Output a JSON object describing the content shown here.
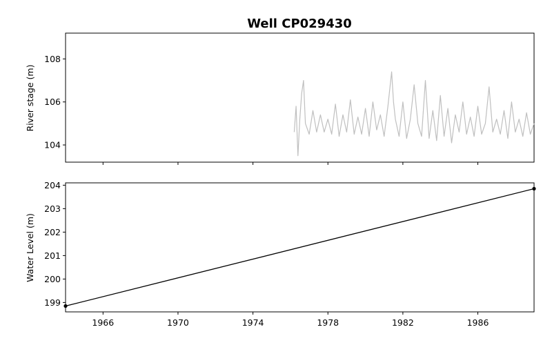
{
  "figure": {
    "title": "Well CP029430"
  },
  "chart_data": [
    {
      "type": "line",
      "name": "top-panel",
      "ylabel": "River stage (m)",
      "xlabel": "",
      "x_unit": "year",
      "xlim": [
        1964.0,
        1989.0
      ],
      "ylim": [
        103.2,
        109.2
      ],
      "yticks": [
        104,
        106,
        108
      ],
      "xticks": [
        1966,
        1970,
        1974,
        1978,
        1982,
        1986
      ],
      "x_tick_labels_shown": false,
      "grid": false,
      "series": [
        {
          "color": "#bfbfbf",
          "x": [
            1976.2,
            1976.3,
            1976.4,
            1976.5,
            1976.6,
            1976.7,
            1976.8,
            1977.0,
            1977.2,
            1977.4,
            1977.6,
            1977.8,
            1978.0,
            1978.2,
            1978.4,
            1978.6,
            1978.8,
            1979.0,
            1979.2,
            1979.4,
            1979.6,
            1979.8,
            1980.0,
            1980.2,
            1980.4,
            1980.6,
            1980.8,
            1981.0,
            1981.2,
            1981.4,
            1981.5,
            1981.6,
            1981.8,
            1982.0,
            1982.2,
            1982.4,
            1982.6,
            1982.8,
            1983.0,
            1983.2,
            1983.4,
            1983.6,
            1983.8,
            1984.0,
            1984.2,
            1984.4,
            1984.6,
            1984.8,
            1985.0,
            1985.2,
            1985.4,
            1985.6,
            1985.8,
            1986.0,
            1986.2,
            1986.4,
            1986.6,
            1986.8,
            1987.0,
            1987.2,
            1987.4,
            1987.6,
            1987.8,
            1988.0,
            1988.2,
            1988.4,
            1988.6,
            1988.8,
            1989.0
          ],
          "y": [
            104.6,
            105.8,
            103.5,
            105.2,
            106.4,
            107.0,
            105.0,
            104.5,
            105.6,
            104.6,
            105.4,
            104.6,
            105.2,
            104.5,
            105.9,
            104.4,
            105.4,
            104.6,
            106.1,
            104.5,
            105.3,
            104.5,
            105.7,
            104.4,
            106.0,
            104.7,
            105.4,
            104.4,
            105.8,
            107.4,
            106.0,
            105.2,
            104.4,
            106.0,
            104.3,
            105.2,
            106.8,
            105.0,
            104.4,
            107.0,
            104.3,
            105.6,
            104.2,
            106.3,
            104.4,
            105.7,
            104.1,
            105.4,
            104.6,
            106.0,
            104.5,
            105.3,
            104.4,
            105.8,
            104.5,
            105.0,
            106.7,
            104.6,
            105.2,
            104.5,
            105.6,
            104.3,
            106.0,
            104.6,
            105.2,
            104.4,
            105.5,
            104.5,
            105.0
          ]
        }
      ]
    },
    {
      "type": "line",
      "name": "bottom-panel",
      "ylabel": "Water Level (m)",
      "xlabel": "",
      "x_unit": "year",
      "xlim": [
        1964.0,
        1989.0
      ],
      "ylim": [
        198.6,
        204.1
      ],
      "yticks": [
        199,
        200,
        201,
        202,
        203,
        204
      ],
      "xticks": [
        1966,
        1970,
        1974,
        1978,
        1982,
        1986
      ],
      "x_tick_labels_shown": true,
      "grid": false,
      "series": [
        {
          "color": "#000000",
          "markers": true,
          "x": [
            1964.0,
            1989.0
          ],
          "y": [
            198.85,
            203.85
          ]
        }
      ]
    }
  ]
}
